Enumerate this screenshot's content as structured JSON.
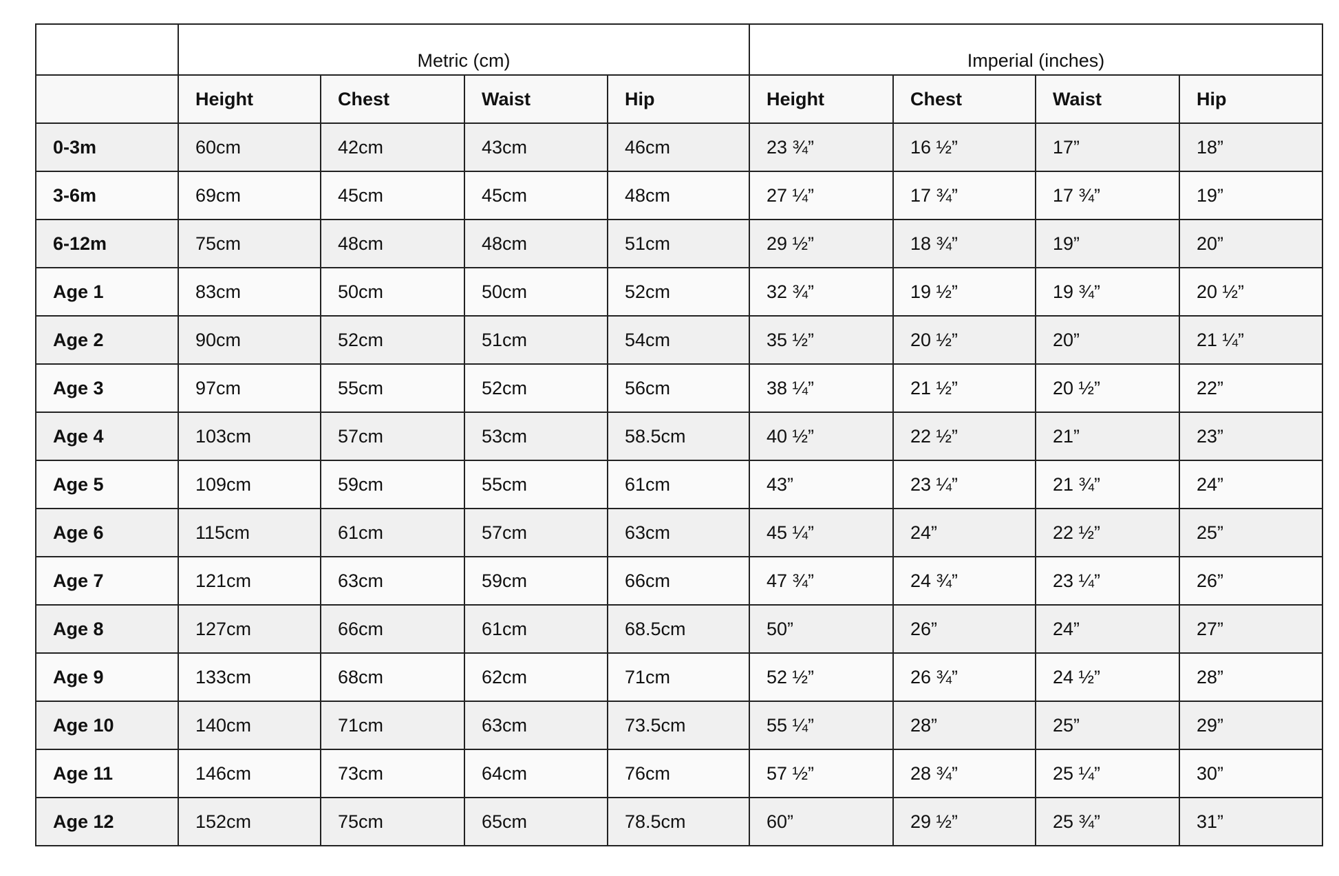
{
  "groups": [
    "",
    "Metric (cm)",
    "Imperial (inches)"
  ],
  "columns": [
    "",
    "Height",
    "Chest",
    "Waist",
    "Hip",
    "Height",
    "Chest",
    "Waist",
    "Hip"
  ],
  "rows": [
    [
      "0-3m",
      "60cm",
      "42cm",
      "43cm",
      "46cm",
      "23 ¾”",
      "16 ½”",
      "17”",
      "18”"
    ],
    [
      "3-6m",
      "69cm",
      "45cm",
      "45cm",
      "48cm",
      "27 ¼”",
      "17 ¾”",
      "17 ¾”",
      "19”"
    ],
    [
      "6-12m",
      "75cm",
      "48cm",
      "48cm",
      "51cm",
      "29 ½”",
      "18 ¾”",
      "19”",
      "20”"
    ],
    [
      "Age 1",
      "83cm",
      "50cm",
      "50cm",
      "52cm",
      "32 ¾”",
      "19 ½”",
      "19 ¾”",
      "20 ½”"
    ],
    [
      "Age 2",
      "90cm",
      "52cm",
      "51cm",
      "54cm",
      "35 ½”",
      "20 ½”",
      "20”",
      "21 ¼”"
    ],
    [
      "Age 3",
      "97cm",
      "55cm",
      "52cm",
      "56cm",
      "38 ¼”",
      "21 ½”",
      "20 ½”",
      "22”"
    ],
    [
      "Age 4",
      "103cm",
      "57cm",
      "53cm",
      "58.5cm",
      "40 ½”",
      "22 ½”",
      "21”",
      "23”"
    ],
    [
      "Age 5",
      "109cm",
      "59cm",
      "55cm",
      "61cm",
      "43”",
      "23 ¼”",
      "21 ¾”",
      "24”"
    ],
    [
      "Age 6",
      "115cm",
      "61cm",
      "57cm",
      "63cm",
      "45 ¼”",
      "24”",
      "22 ½”",
      "25”"
    ],
    [
      "Age 7",
      "121cm",
      "63cm",
      "59cm",
      "66cm",
      "47 ¾”",
      "24 ¾”",
      "23 ¼”",
      "26”"
    ],
    [
      "Age 8",
      "127cm",
      "66cm",
      "61cm",
      "68.5cm",
      "50”",
      "26”",
      "24”",
      "27”"
    ],
    [
      "Age 9",
      "133cm",
      "68cm",
      "62cm",
      "71cm",
      "52 ½”",
      "26 ¾”",
      "24 ½”",
      "28”"
    ],
    [
      "Age 10",
      "140cm",
      "71cm",
      "63cm",
      "73.5cm",
      "55 ¼”",
      "28”",
      "25”",
      "29”"
    ],
    [
      "Age 11",
      "146cm",
      "73cm",
      "64cm",
      "76cm",
      "57 ½”",
      "28 ¾”",
      "25 ¼”",
      "30”"
    ],
    [
      "Age 12",
      "152cm",
      "75cm",
      "65cm",
      "78.5cm",
      "60”",
      "29 ½”",
      "25 ¾”",
      "31”"
    ]
  ]
}
